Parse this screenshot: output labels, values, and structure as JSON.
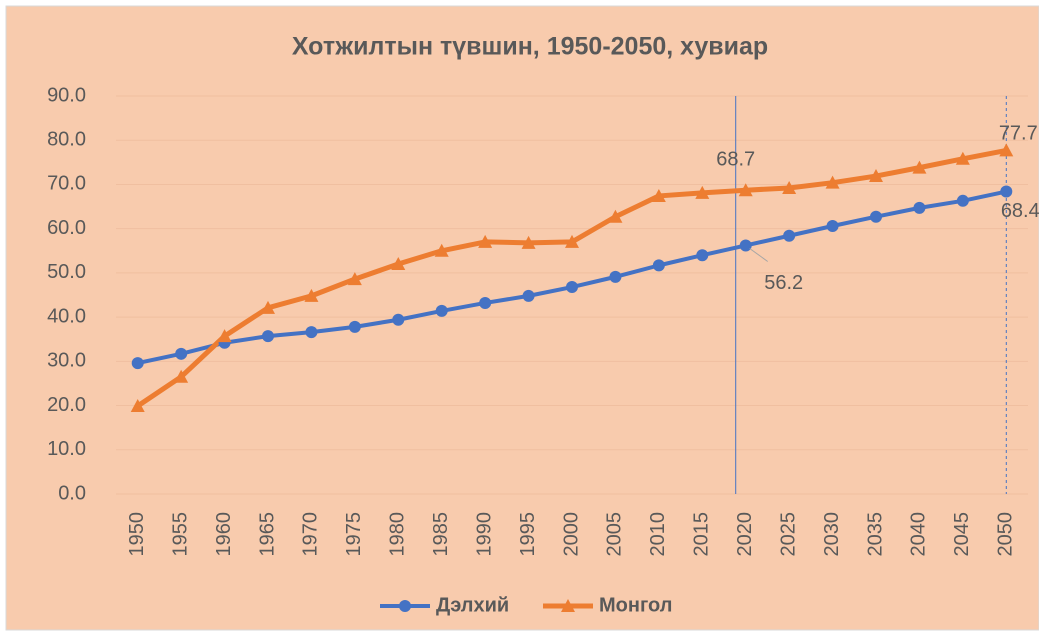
{
  "chart_data": {
    "type": "line",
    "title": "Хотжилтын түвшин, 1950-2050, хувиар",
    "categories": [
      "1950",
      "1955",
      "1960",
      "1965",
      "1970",
      "1975",
      "1980",
      "1985",
      "1990",
      "1995",
      "2000",
      "2005",
      "2010",
      "2015",
      "2020",
      "2025",
      "2030",
      "2035",
      "2040",
      "2045",
      "2050"
    ],
    "series": [
      {
        "name": "Дэлхий",
        "color": "#4472c4",
        "marker": "circle",
        "values": [
          29.6,
          31.7,
          34.2,
          35.7,
          36.6,
          37.8,
          39.4,
          41.4,
          43.2,
          44.8,
          46.8,
          49.1,
          51.7,
          54.0,
          56.2,
          58.4,
          60.6,
          62.7,
          64.7,
          66.3,
          68.4
        ],
        "value_labels": [
          null,
          null,
          null,
          null,
          null,
          null,
          null,
          null,
          null,
          null,
          null,
          null,
          null,
          null,
          "56.2",
          null,
          null,
          null,
          null,
          null,
          "68.4"
        ]
      },
      {
        "name": "Монгол",
        "color": "#ed7d31",
        "marker": "triangle",
        "values": [
          19.9,
          26.5,
          35.7,
          42.1,
          44.8,
          48.6,
          52.0,
          55.0,
          57.0,
          56.8,
          57.0,
          62.7,
          67.4,
          68.1,
          68.7,
          69.2,
          70.4,
          71.9,
          73.8,
          75.8,
          77.7
        ],
        "value_labels": [
          null,
          null,
          null,
          null,
          null,
          null,
          null,
          null,
          null,
          null,
          null,
          null,
          null,
          null,
          "68.7",
          null,
          null,
          null,
          null,
          null,
          "77.7"
        ]
      }
    ],
    "ylim": [
      0,
      90
    ],
    "yticks": [
      {
        "value": 0,
        "label": "0.0"
      },
      {
        "value": 10,
        "label": "10.0"
      },
      {
        "value": 20,
        "label": "20.0"
      },
      {
        "value": 30,
        "label": "30.0"
      },
      {
        "value": 40,
        "label": "40.0"
      },
      {
        "value": 50,
        "label": "50.0"
      },
      {
        "value": 60,
        "label": "60.0"
      },
      {
        "value": 70,
        "label": "70.0"
      },
      {
        "value": 80,
        "label": "80.0"
      },
      {
        "value": 90,
        "label": "90.0"
      }
    ],
    "grid": true,
    "legend": "bottom"
  }
}
